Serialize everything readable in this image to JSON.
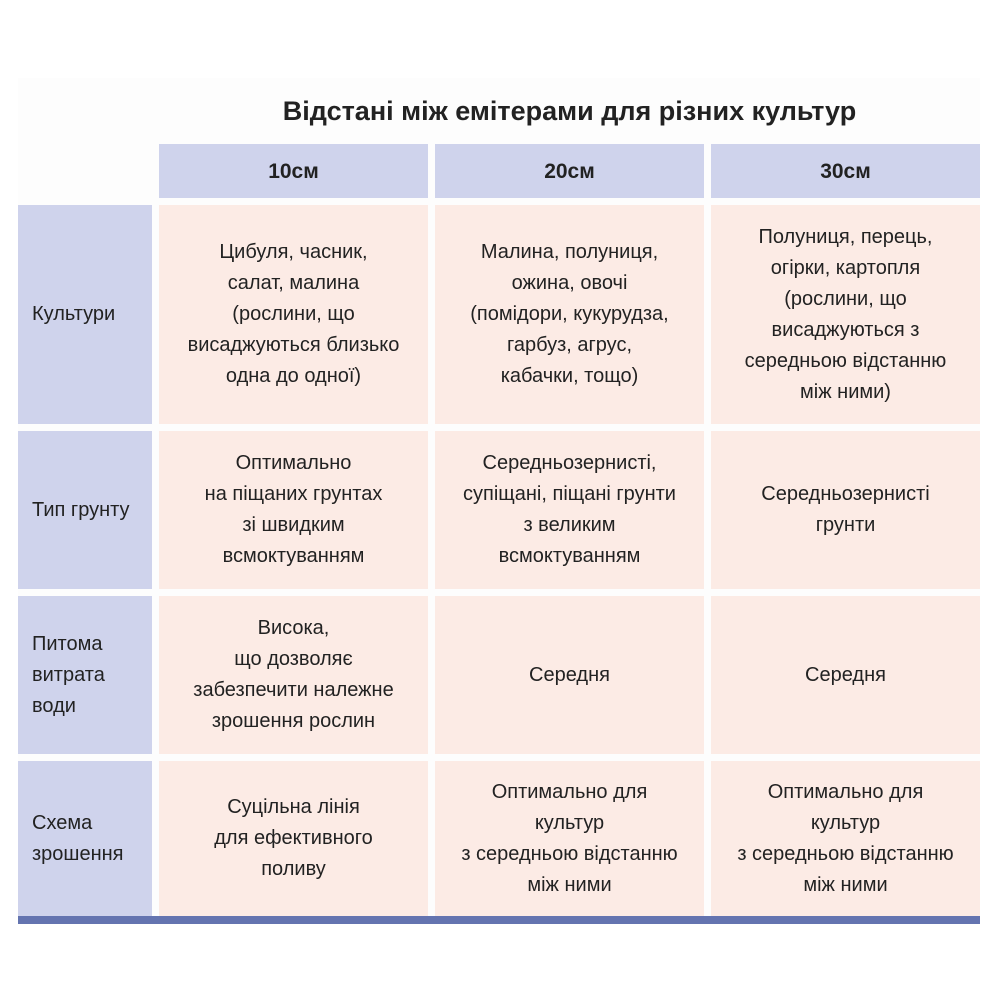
{
  "title": "Відстані між емітерами для різних культур",
  "columns": [
    "10см",
    "20см",
    "30см"
  ],
  "rows": [
    {
      "label": "Культури",
      "cells": [
        "Цибуля, часник,\nсалат, малина\n(рослини, що\nвисаджуються близько\nодна до одної)",
        "Малина, полуниця,\nожина, овочі\n(помідори, кукурудза,\nгарбуз, агрус,\nкабачки, тощо)",
        "Полуниця, перець,\nогірки, картопля\n(рослини, що\nвисаджуються з\nсередньою відстанню\nміж ними)"
      ]
    },
    {
      "label": "Тип грунту",
      "cells": [
        "Оптимально\nна піщаних грунтах\nзі швидким\nвсмоктуванням",
        "Середньозернисті,\nсупіщані, піщані грунти\nз великим\nвсмоктуванням",
        "Середньозернисті\nгрунти"
      ]
    },
    {
      "label": "Питома\nвитрата\nводи",
      "cells": [
        "Висока,\nщо дозволяє\nзабезпечити належне\nзрошення рослин",
        "Середня",
        "Середня"
      ]
    },
    {
      "label": "Схема\nзрошення",
      "cells": [
        "Суцільна лінія\nдля ефективного\nполиву",
        "Оптимально для\nкультур\nз середньою відстанню\nміж ними",
        "Оптимально для\nкультур\nз середньою відстанню\nміж ними"
      ]
    }
  ],
  "colors": {
    "header_bg": "#cfd3ec",
    "cell_bg": "#fcebe5",
    "bottom_bar": "#6474b0"
  }
}
